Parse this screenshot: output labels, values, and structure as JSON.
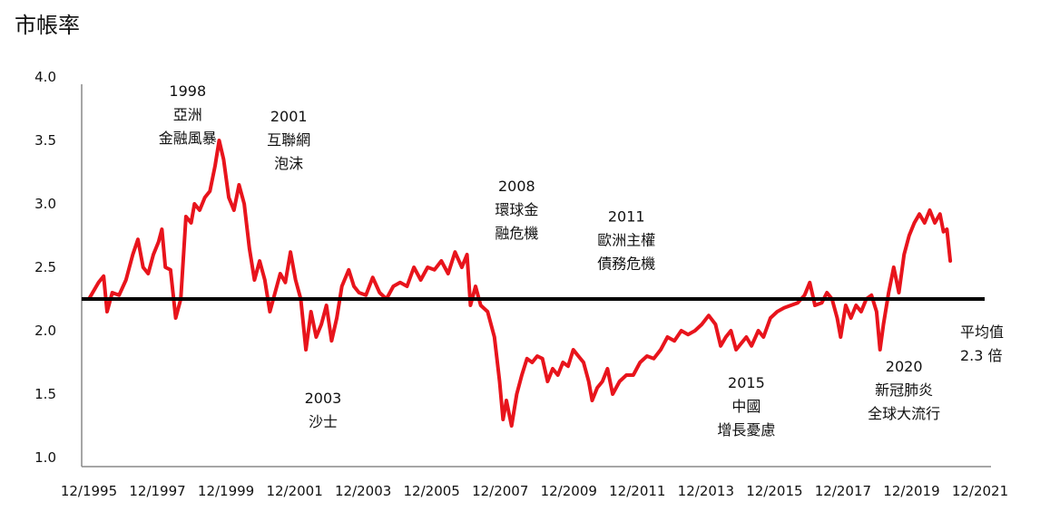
{
  "chart_data": {
    "type": "line",
    "title": "市帳率",
    "xlabel": "",
    "ylabel": "",
    "ylim": [
      1.0,
      4.0
    ],
    "yticks": [
      "4.0",
      "3.5",
      "3.0",
      "2.5",
      "2.0",
      "1.5",
      "1.0"
    ],
    "xticks": [
      "12/1995",
      "12/1997",
      "12/1999",
      "12/2001",
      "12/2003",
      "12/2005",
      "12/2007",
      "12/2009",
      "12/2011",
      "12/2013",
      "12/2015",
      "12/2017",
      "12/2019",
      "12/2021"
    ],
    "line_color": "#e8141c",
    "average": {
      "value": 2.25,
      "color": "#000000",
      "label_lines": [
        "平均值",
        "2.3 倍"
      ]
    },
    "series": [
      {
        "name": "",
        "points": [
          [
            1995.92,
            2.25
          ],
          [
            1996.2,
            2.38
          ],
          [
            1996.35,
            2.43
          ],
          [
            1996.45,
            2.15
          ],
          [
            1996.6,
            2.3
          ],
          [
            1996.8,
            2.28
          ],
          [
            1997.0,
            2.4
          ],
          [
            1997.2,
            2.6
          ],
          [
            1997.35,
            2.72
          ],
          [
            1997.5,
            2.5
          ],
          [
            1997.65,
            2.45
          ],
          [
            1997.8,
            2.6
          ],
          [
            1997.95,
            2.7
          ],
          [
            1998.05,
            2.8
          ],
          [
            1998.15,
            2.5
          ],
          [
            1998.3,
            2.48
          ],
          [
            1998.45,
            2.1
          ],
          [
            1998.6,
            2.25
          ],
          [
            1998.75,
            2.9
          ],
          [
            1998.9,
            2.85
          ],
          [
            1999.0,
            3.0
          ],
          [
            1999.15,
            2.95
          ],
          [
            1999.3,
            3.05
          ],
          [
            1999.45,
            3.1
          ],
          [
            1999.6,
            3.3
          ],
          [
            1999.72,
            3.5
          ],
          [
            1999.85,
            3.35
          ],
          [
            2000.0,
            3.05
          ],
          [
            2000.15,
            2.95
          ],
          [
            2000.3,
            3.15
          ],
          [
            2000.45,
            3.0
          ],
          [
            2000.6,
            2.65
          ],
          [
            2000.75,
            2.4
          ],
          [
            2000.9,
            2.55
          ],
          [
            2001.05,
            2.4
          ],
          [
            2001.2,
            2.15
          ],
          [
            2001.35,
            2.3
          ],
          [
            2001.5,
            2.45
          ],
          [
            2001.65,
            2.38
          ],
          [
            2001.8,
            2.62
          ],
          [
            2001.95,
            2.4
          ],
          [
            2002.1,
            2.25
          ],
          [
            2002.25,
            1.85
          ],
          [
            2002.4,
            2.15
          ],
          [
            2002.55,
            1.95
          ],
          [
            2002.7,
            2.05
          ],
          [
            2002.85,
            2.2
          ],
          [
            2003.0,
            1.92
          ],
          [
            2003.15,
            2.1
          ],
          [
            2003.3,
            2.35
          ],
          [
            2003.5,
            2.48
          ],
          [
            2003.65,
            2.35
          ],
          [
            2003.8,
            2.3
          ],
          [
            2004.0,
            2.28
          ],
          [
            2004.2,
            2.42
          ],
          [
            2004.4,
            2.3
          ],
          [
            2004.6,
            2.25
          ],
          [
            2004.8,
            2.35
          ],
          [
            2005.0,
            2.38
          ],
          [
            2005.2,
            2.35
          ],
          [
            2005.4,
            2.5
          ],
          [
            2005.6,
            2.4
          ],
          [
            2005.8,
            2.5
          ],
          [
            2006.0,
            2.48
          ],
          [
            2006.2,
            2.55
          ],
          [
            2006.4,
            2.45
          ],
          [
            2006.6,
            2.62
          ],
          [
            2006.8,
            2.5
          ],
          [
            2006.95,
            2.6
          ],
          [
            2007.05,
            2.2
          ],
          [
            2007.2,
            2.35
          ],
          [
            2007.35,
            2.2
          ],
          [
            2007.55,
            2.15
          ],
          [
            2007.75,
            1.95
          ],
          [
            2007.9,
            1.6
          ],
          [
            2008.0,
            1.3
          ],
          [
            2008.1,
            1.45
          ],
          [
            2008.25,
            1.25
          ],
          [
            2008.4,
            1.5
          ],
          [
            2008.55,
            1.65
          ],
          [
            2008.7,
            1.78
          ],
          [
            2008.85,
            1.75
          ],
          [
            2009.0,
            1.8
          ],
          [
            2009.15,
            1.78
          ],
          [
            2009.3,
            1.6
          ],
          [
            2009.45,
            1.7
          ],
          [
            2009.6,
            1.65
          ],
          [
            2009.75,
            1.75
          ],
          [
            2009.9,
            1.72
          ],
          [
            2010.05,
            1.85
          ],
          [
            2010.2,
            1.8
          ],
          [
            2010.35,
            1.75
          ],
          [
            2010.5,
            1.6
          ],
          [
            2010.6,
            1.45
          ],
          [
            2010.75,
            1.55
          ],
          [
            2010.9,
            1.6
          ],
          [
            2011.05,
            1.7
          ],
          [
            2011.2,
            1.5
          ],
          [
            2011.4,
            1.6
          ],
          [
            2011.6,
            1.65
          ],
          [
            2011.8,
            1.65
          ],
          [
            2012.0,
            1.75
          ],
          [
            2012.2,
            1.8
          ],
          [
            2012.4,
            1.78
          ],
          [
            2012.6,
            1.85
          ],
          [
            2012.8,
            1.95
          ],
          [
            2013.0,
            1.92
          ],
          [
            2013.2,
            2.0
          ],
          [
            2013.4,
            1.97
          ],
          [
            2013.6,
            2.0
          ],
          [
            2013.8,
            2.05
          ],
          [
            2014.0,
            2.12
          ],
          [
            2014.2,
            2.05
          ],
          [
            2014.35,
            1.88
          ],
          [
            2014.5,
            1.95
          ],
          [
            2014.65,
            2.0
          ],
          [
            2014.8,
            1.85
          ],
          [
            2014.95,
            1.9
          ],
          [
            2015.1,
            1.95
          ],
          [
            2015.25,
            1.88
          ],
          [
            2015.45,
            2.0
          ],
          [
            2015.6,
            1.95
          ],
          [
            2015.8,
            2.1
          ],
          [
            2016.0,
            2.15
          ],
          [
            2016.2,
            2.18
          ],
          [
            2016.4,
            2.2
          ],
          [
            2016.6,
            2.22
          ],
          [
            2016.8,
            2.28
          ],
          [
            2016.95,
            2.38
          ],
          [
            2017.1,
            2.2
          ],
          [
            2017.3,
            2.22
          ],
          [
            2017.45,
            2.3
          ],
          [
            2017.6,
            2.25
          ],
          [
            2017.75,
            2.1
          ],
          [
            2017.85,
            1.95
          ],
          [
            2018.0,
            2.2
          ],
          [
            2018.15,
            2.1
          ],
          [
            2018.3,
            2.2
          ],
          [
            2018.45,
            2.15
          ],
          [
            2018.6,
            2.25
          ],
          [
            2018.75,
            2.28
          ],
          [
            2018.9,
            2.15
          ],
          [
            2019.0,
            1.85
          ],
          [
            2019.1,
            2.05
          ],
          [
            2019.25,
            2.3
          ],
          [
            2019.4,
            2.5
          ],
          [
            2019.55,
            2.3
          ],
          [
            2019.7,
            2.6
          ],
          [
            2019.85,
            2.75
          ],
          [
            2020.0,
            2.85
          ],
          [
            2020.15,
            2.92
          ],
          [
            2020.3,
            2.85
          ],
          [
            2020.45,
            2.95
          ],
          [
            2020.6,
            2.85
          ],
          [
            2020.75,
            2.92
          ],
          [
            2020.85,
            2.78
          ],
          [
            2020.95,
            2.8
          ],
          [
            2021.05,
            2.55
          ]
        ]
      }
    ],
    "annotations": [
      {
        "lines": [
          "1998",
          "亞洲",
          "金融風暴"
        ],
        "year": 1998.8,
        "y": 3.85
      },
      {
        "lines": [
          "2001",
          "互聯網",
          "泡沫"
        ],
        "year": 2001.75,
        "y": 3.65
      },
      {
        "lines": [
          "2003",
          "沙士"
        ],
        "year": 2002.75,
        "y": 1.43
      },
      {
        "lines": [
          "2008",
          "環球金",
          "融危機"
        ],
        "year": 2008.4,
        "y": 3.1
      },
      {
        "lines": [
          "2011",
          "歐洲主權",
          "債務危機"
        ],
        "year": 2011.6,
        "y": 2.86
      },
      {
        "lines": [
          "2015",
          "中國",
          "增長憂慮"
        ],
        "year": 2015.1,
        "y": 1.55
      },
      {
        "lines": [
          "2020",
          "新冠肺炎",
          "全球大流行"
        ],
        "year": 2019.7,
        "y": 1.68
      }
    ]
  }
}
